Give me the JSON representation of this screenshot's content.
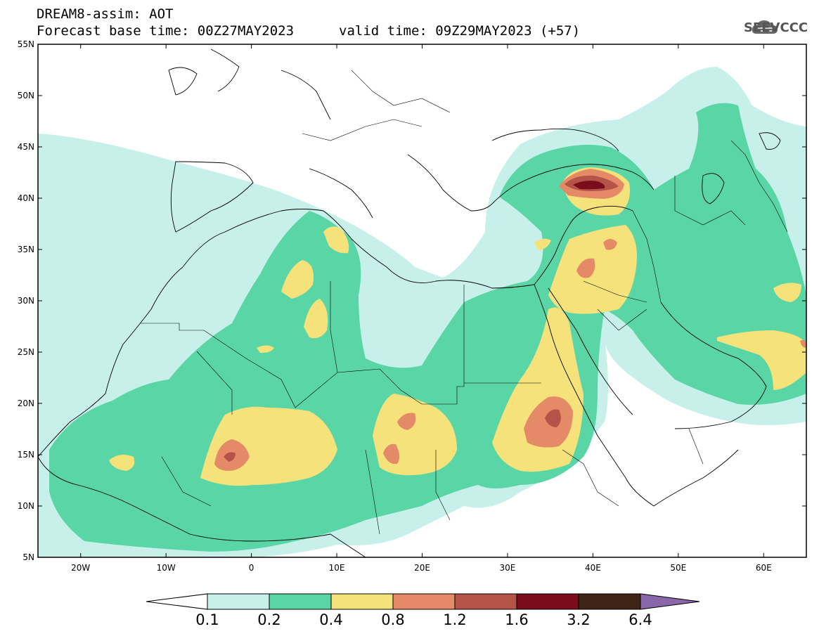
{
  "header": {
    "title_line1": "DREAM8-assim: AOT",
    "title_line2_base": "Forecast base time: 00Z27MAY2023",
    "title_line2_valid": "valid time: 09Z29MAY2023 (+57)",
    "logo_text": "SEEVCCC",
    "logo_icon": "cloud-icon"
  },
  "map": {
    "lon_range": [
      -25,
      65
    ],
    "lat_range": [
      5,
      55
    ],
    "lat_ticks": [
      {
        "value": 55,
        "label": "55N"
      },
      {
        "value": 50,
        "label": "50N"
      },
      {
        "value": 45,
        "label": "45N"
      },
      {
        "value": 40,
        "label": "40N"
      },
      {
        "value": 35,
        "label": "35N"
      },
      {
        "value": 30,
        "label": "30N"
      },
      {
        "value": 25,
        "label": "25N"
      },
      {
        "value": 20,
        "label": "20N"
      },
      {
        "value": 15,
        "label": "15N"
      },
      {
        "value": 10,
        "label": "10N"
      },
      {
        "value": 5,
        "label": "5N"
      }
    ],
    "lon_ticks": [
      {
        "value": -20,
        "label": "20W"
      },
      {
        "value": -10,
        "label": "10W"
      },
      {
        "value": 0,
        "label": "0"
      },
      {
        "value": 10,
        "label": "10E"
      },
      {
        "value": 20,
        "label": "20E"
      },
      {
        "value": 30,
        "label": "30E"
      },
      {
        "value": 40,
        "label": "40E"
      },
      {
        "value": 50,
        "label": "50E"
      },
      {
        "value": 60,
        "label": "60E"
      }
    ],
    "colors": {
      "0.1": "#c8f0eb",
      "0.2": "#5ad6a6",
      "0.4": "#f5e27a",
      "0.8": "#e48a67",
      "1.2": "#b45448",
      "1.6": "#7a0d1c",
      "3.2": "#3e2515",
      "6.4": "#8a67a8"
    }
  },
  "colorbar": {
    "labels": [
      "0.1",
      "0.2",
      "0.4",
      "0.8",
      "1.2",
      "1.6",
      "3.2",
      "6.4"
    ],
    "colors": [
      "#c8f0eb",
      "#5ad6a6",
      "#f5e27a",
      "#e48a67",
      "#b45448",
      "#7a0d1c",
      "#3e2515"
    ],
    "low_arrow_color": "#ffffff",
    "high_arrow_color": "#8a67a8"
  }
}
